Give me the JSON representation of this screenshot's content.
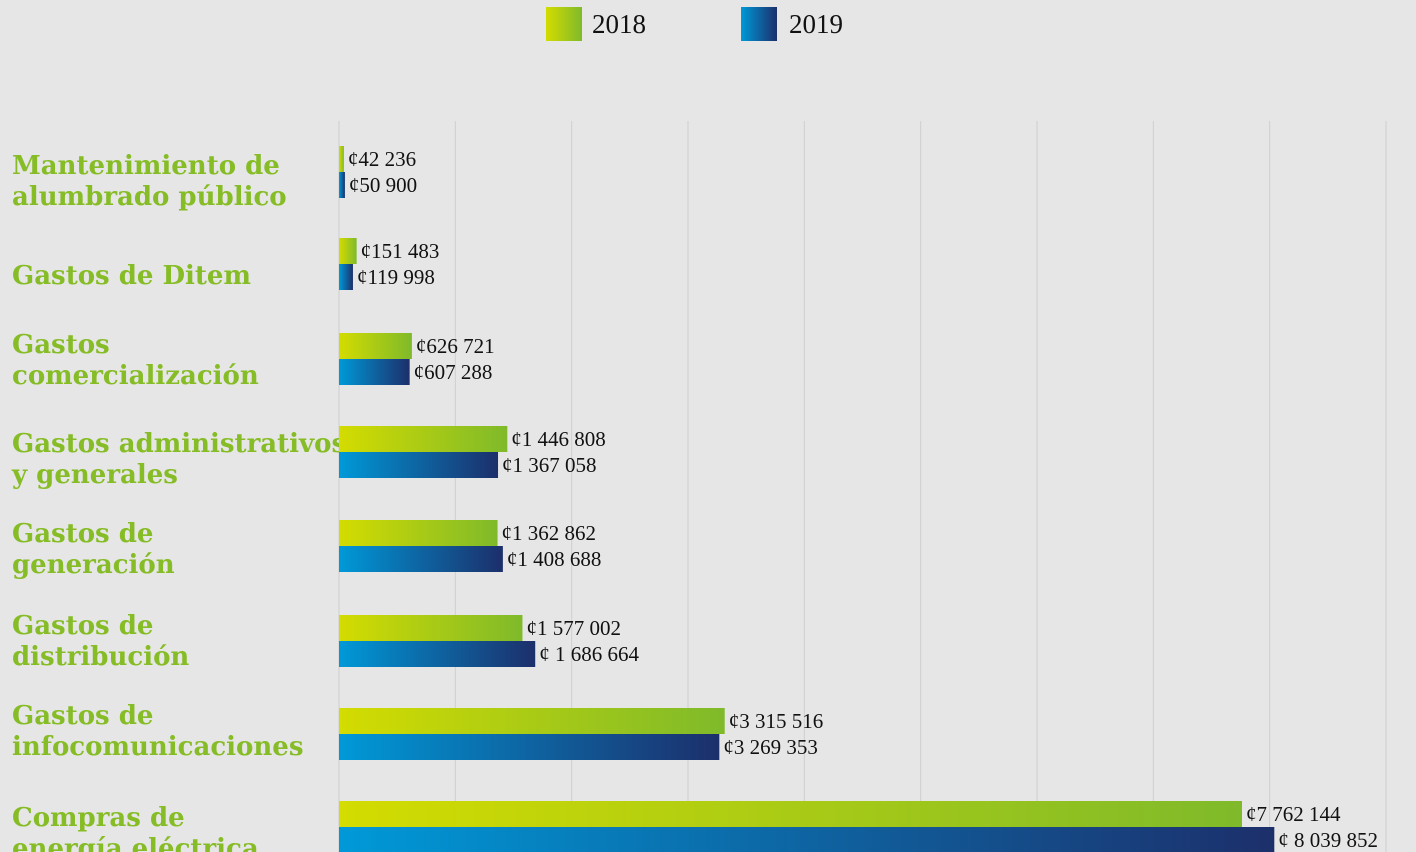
{
  "chart_data": {
    "type": "bar",
    "orientation": "horizontal",
    "title": "",
    "xlabel": "",
    "ylabel": "",
    "xlim": [
      0,
      9000000
    ],
    "grid": true,
    "legend_position": "top-center",
    "categories": [
      [
        "Mantenimiento de",
        "alumbrado público"
      ],
      [
        "Gastos de Ditem"
      ],
      [
        "Gastos",
        "comercialización"
      ],
      [
        "Gastos administrativos",
        "y generales"
      ],
      [
        "Gastos de",
        "generación"
      ],
      [
        "Gastos de",
        "distribución"
      ],
      [
        "Gastos de",
        "infocomunicaciones"
      ],
      [
        "Compras de",
        "energía eléctrica"
      ]
    ],
    "series": [
      {
        "name": "2018",
        "values": [
          42236,
          151483,
          626721,
          1446808,
          1362862,
          1577002,
          3315516,
          7762144
        ],
        "labels": [
          "¢42 236",
          "¢151 483",
          "¢626 721",
          "¢1 446 808",
          "¢1 362 862",
          "¢1 577 002",
          "¢3 315 516",
          "¢7 762 144"
        ],
        "colors": [
          "#d4dc00",
          "#7fba2a"
        ]
      },
      {
        "name": "2019",
        "values": [
          50900,
          119998,
          607288,
          1367058,
          1408688,
          1686664,
          3269353,
          8039852
        ],
        "labels": [
          "¢50 900",
          "¢119 998",
          "¢607 288",
          "¢1 367 058",
          "¢1 408 688",
          "¢ 1 686 664",
          "¢3 269 353",
          "¢ 8 039 852"
        ],
        "colors": [
          "#0099d8",
          "#1c2f6b"
        ]
      }
    ],
    "category_label_color": "#86bc25",
    "background_color": "#e6e6e6"
  }
}
